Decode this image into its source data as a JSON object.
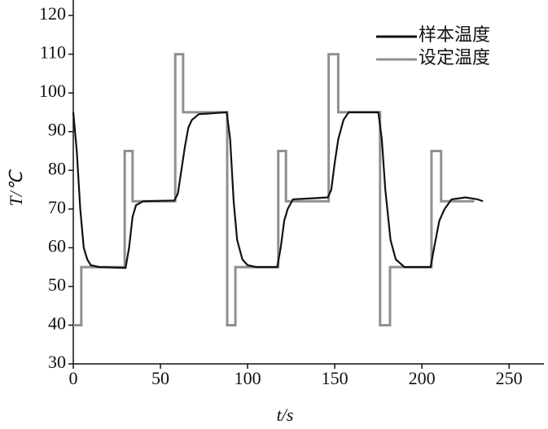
{
  "chart_data": {
    "type": "line",
    "xlabel": "t/s",
    "ylabel": "T/℃",
    "xlim": [
      0,
      270
    ],
    "xticks": [
      0,
      50,
      100,
      150,
      200,
      250
    ],
    "ylim": [
      30,
      124
    ],
    "yticks": [
      30,
      40,
      50,
      60,
      70,
      80,
      90,
      100,
      110,
      120
    ],
    "legend": "upper right",
    "series": [
      {
        "name": "样本温度",
        "color": "#111111",
        "x": [
          0,
          2,
          4,
          6,
          8,
          10,
          15,
          30,
          32,
          34,
          36,
          40,
          58,
          60,
          62,
          64,
          66,
          68,
          72,
          88,
          90,
          92,
          94,
          97,
          100,
          105,
          117,
          119,
          121,
          123,
          126,
          146,
          148,
          150,
          152,
          155,
          158,
          175,
          177,
          179,
          182,
          185,
          190,
          205,
          207,
          210,
          213,
          217,
          225,
          232,
          235
        ],
        "values": [
          95,
          85,
          70,
          60,
          57,
          55.5,
          55,
          54.8,
          60,
          68,
          71,
          72,
          72.2,
          74,
          80,
          86,
          91,
          93,
          94.5,
          95,
          88,
          72,
          62,
          57,
          55.5,
          55,
          55,
          60,
          67,
          70,
          72.5,
          73,
          75,
          82,
          88,
          93,
          95,
          95,
          88,
          75,
          62,
          57,
          55,
          55,
          60,
          67,
          70,
          72.5,
          73,
          72.5,
          72
        ]
      },
      {
        "name": "设定温度",
        "color": "#909090",
        "x": [
          0,
          4.6,
          4.6,
          29.5,
          29.5,
          34,
          34,
          58.5,
          58.5,
          63,
          63,
          88.3,
          88.3,
          93,
          93,
          117.6,
          117.6,
          122,
          122,
          146.5,
          146.5,
          152,
          152,
          176,
          176,
          181.7,
          181.7,
          205.5,
          205.5,
          211,
          211,
          230
        ],
        "values": [
          40,
          40,
          55,
          55,
          85,
          85,
          72,
          72,
          110,
          110,
          95,
          95,
          40,
          40,
          55,
          55,
          85,
          85,
          72,
          72,
          110,
          110,
          95,
          95,
          40,
          40,
          55,
          55,
          85,
          85,
          72,
          72
        ]
      }
    ]
  }
}
